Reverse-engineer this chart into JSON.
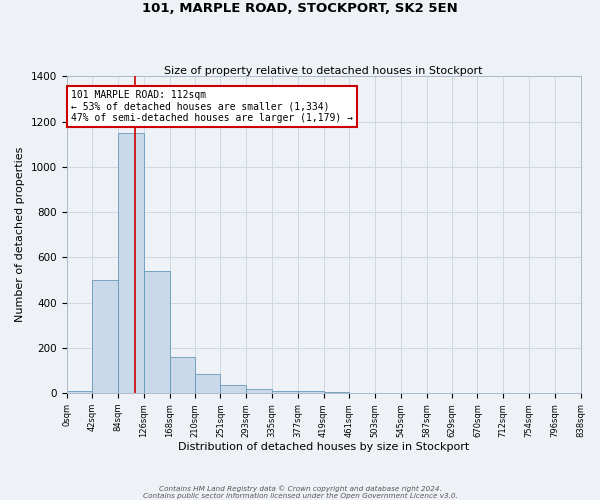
{
  "title": "101, MARPLE ROAD, STOCKPORT, SK2 5EN",
  "subtitle": "Size of property relative to detached houses in Stockport",
  "xlabel": "Distribution of detached houses by size in Stockport",
  "ylabel": "Number of detached properties",
  "bar_color": "#c9d9ea",
  "bar_edge_color": "#6699bb",
  "bin_edges": [
    0,
    42,
    84,
    126,
    168,
    210,
    251,
    293,
    335,
    377,
    419,
    461,
    503,
    545,
    587,
    629,
    670,
    712,
    754,
    796,
    838
  ],
  "bar_heights": [
    10,
    500,
    1150,
    540,
    160,
    85,
    38,
    20,
    12,
    8,
    5,
    0,
    0,
    0,
    0,
    0,
    0,
    0,
    0,
    0
  ],
  "tick_labels": [
    "0sqm",
    "42sqm",
    "84sqm",
    "126sqm",
    "168sqm",
    "210sqm",
    "251sqm",
    "293sqm",
    "335sqm",
    "377sqm",
    "419sqm",
    "461sqm",
    "503sqm",
    "545sqm",
    "587sqm",
    "629sqm",
    "670sqm",
    "712sqm",
    "754sqm",
    "796sqm",
    "838sqm"
  ],
  "ylim": [
    0,
    1400
  ],
  "yticks": [
    0,
    200,
    400,
    600,
    800,
    1000,
    1200,
    1400
  ],
  "property_line_x": 112,
  "property_line_color": "#cc0000",
  "annotation_title": "101 MARPLE ROAD: 112sqm",
  "annotation_line1": "← 53% of detached houses are smaller (1,334)",
  "annotation_line2": "47% of semi-detached houses are larger (1,179) →",
  "annotation_box_color": "#ffffff",
  "annotation_box_edge": "#cc0000",
  "footer_line1": "Contains HM Land Registry data © Crown copyright and database right 2024.",
  "footer_line2": "Contains public sector information licensed under the Open Government Licence v3.0.",
  "background_color": "#eef2f7",
  "grid_color": "#ccd8e4"
}
